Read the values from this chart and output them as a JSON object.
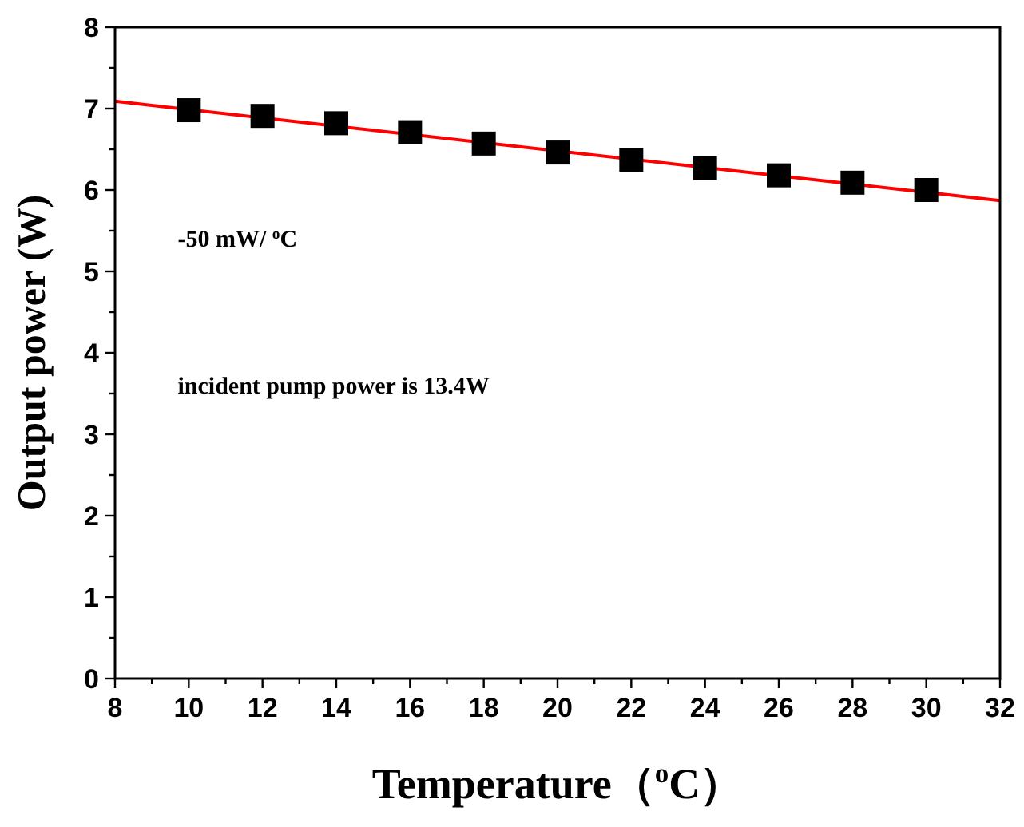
{
  "chart_data": {
    "type": "scatter",
    "xlabel": "Temperature（$^{o}$C）",
    "ylabel": "Output power (W)",
    "xlim": [
      8,
      32
    ],
    "ylim": [
      0,
      8
    ],
    "xticks": [
      8,
      {
        "value": 9,
        "label": null
      },
      10,
      {
        "value": 11,
        "label": null
      },
      12,
      {
        "value": 13,
        "label": null
      },
      14,
      {
        "value": 15,
        "label": null
      },
      16,
      {
        "value": 17,
        "label": null
      },
      18,
      {
        "value": 19,
        "label": null
      },
      20,
      {
        "value": 21,
        "label": null
      },
      22,
      {
        "value": 23,
        "label": null
      },
      24,
      {
        "value": 25,
        "label": null
      },
      26,
      {
        "value": 27,
        "label": null
      },
      28,
      {
        "value": 29,
        "label": null
      },
      30,
      {
        "value": 31,
        "label": null
      },
      32
    ],
    "yticks": [
      0,
      {
        "value": 0.5,
        "label": null
      },
      1,
      {
        "value": 1.5,
        "label": null
      },
      2,
      {
        "value": 2.5,
        "label": null
      },
      3,
      {
        "value": 3.5,
        "label": null
      },
      4,
      {
        "value": 4.5,
        "label": null
      },
      5,
      {
        "value": 5.5,
        "label": null
      },
      6,
      {
        "value": 6.5,
        "label": null
      },
      7,
      {
        "value": 7.5,
        "label": null
      },
      8
    ],
    "annotations": [
      "-50 mW/ $^{o}$C",
      "incident pump power is 13.4W"
    ],
    "grid": false,
    "series": [
      {
        "color": "#000000",
        "marker": "square",
        "x": [
          10,
          12,
          14,
          16,
          18,
          20,
          22,
          24,
          26,
          28,
          30
        ],
        "values": [
          6.98,
          6.91,
          6.82,
          6.71,
          6.57,
          6.46,
          6.37,
          6.27,
          6.18,
          6.09,
          6.0
        ]
      },
      {
        "type": "line",
        "color": "#ff0000",
        "marker": "none",
        "line_style": "solid",
        "x": [
          8,
          32
        ],
        "values": [
          7.09,
          5.87
        ]
      }
    ]
  }
}
